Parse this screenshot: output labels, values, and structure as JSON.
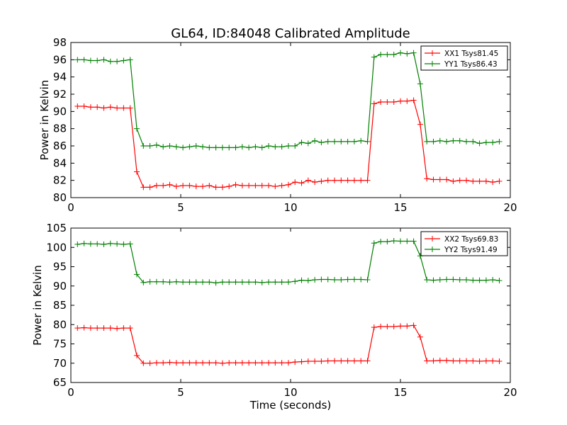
{
  "title": "GL64, ID:84048 Calibrated Amplitude",
  "chart_data": [
    {
      "type": "line",
      "xlabel": "",
      "ylabel": "Power in Kelvin",
      "xlim": [
        0,
        20
      ],
      "ylim": [
        80,
        98
      ],
      "xticks": [
        0,
        5,
        10,
        15,
        20
      ],
      "yticks": [
        80,
        82,
        84,
        86,
        88,
        90,
        92,
        94,
        96,
        98
      ],
      "grid": false,
      "legend_position": "top-right",
      "x": [
        0.3,
        0.6,
        0.9,
        1.2,
        1.5,
        1.8,
        2.1,
        2.4,
        2.7,
        3.0,
        3.3,
        3.6,
        3.9,
        4.2,
        4.5,
        4.8,
        5.1,
        5.4,
        5.7,
        6.0,
        6.3,
        6.6,
        6.9,
        7.2,
        7.5,
        7.8,
        8.1,
        8.4,
        8.7,
        9.0,
        9.3,
        9.6,
        9.9,
        10.2,
        10.5,
        10.8,
        11.1,
        11.4,
        11.7,
        12.0,
        12.3,
        12.6,
        12.9,
        13.2,
        13.5,
        13.8,
        14.1,
        14.4,
        14.7,
        15.0,
        15.3,
        15.6,
        15.9,
        16.2,
        16.5,
        16.8,
        17.1,
        17.4,
        17.7,
        18.0,
        18.3,
        18.6,
        18.9,
        19.2,
        19.5
      ],
      "series": [
        {
          "name": "XX1 Tsys81.45",
          "color": "#ff0000",
          "values": [
            90.6,
            90.6,
            90.5,
            90.5,
            90.4,
            90.5,
            90.4,
            90.4,
            90.4,
            83.0,
            81.2,
            81.2,
            81.4,
            81.4,
            81.5,
            81.3,
            81.4,
            81.4,
            81.3,
            81.3,
            81.4,
            81.2,
            81.2,
            81.3,
            81.5,
            81.4,
            81.4,
            81.4,
            81.4,
            81.4,
            81.3,
            81.4,
            81.5,
            81.8,
            81.7,
            82.0,
            81.8,
            81.9,
            82.0,
            82.0,
            82.0,
            82.0,
            82.0,
            82.0,
            82.0,
            90.9,
            91.1,
            91.1,
            91.1,
            91.2,
            91.2,
            91.3,
            88.5,
            82.2,
            82.1,
            82.1,
            82.1,
            81.9,
            82.0,
            82.0,
            81.9,
            81.9,
            81.9,
            81.8,
            81.9
          ]
        },
        {
          "name": "YY1 Tsys86.43",
          "color": "#008000",
          "values": [
            96.0,
            96.0,
            95.9,
            95.9,
            96.0,
            95.8,
            95.8,
            95.9,
            96.0,
            88.0,
            86.0,
            86.0,
            86.1,
            85.9,
            86.0,
            85.9,
            85.8,
            85.9,
            86.0,
            85.9,
            85.8,
            85.8,
            85.8,
            85.8,
            85.8,
            85.9,
            85.8,
            85.9,
            85.8,
            86.0,
            85.9,
            85.9,
            86.0,
            86.0,
            86.4,
            86.3,
            86.6,
            86.4,
            86.5,
            86.5,
            86.5,
            86.5,
            86.5,
            86.6,
            86.5,
            96.3,
            96.6,
            96.6,
            96.6,
            96.8,
            96.7,
            96.8,
            93.2,
            86.5,
            86.5,
            86.6,
            86.5,
            86.6,
            86.6,
            86.5,
            86.5,
            86.3,
            86.4,
            86.4,
            86.5
          ]
        }
      ]
    },
    {
      "type": "line",
      "xlabel": "Time (seconds)",
      "ylabel": "Power in Kelvin",
      "xlim": [
        0,
        20
      ],
      "ylim": [
        65,
        105
      ],
      "xticks": [
        0,
        5,
        10,
        15,
        20
      ],
      "yticks": [
        65,
        70,
        75,
        80,
        85,
        90,
        95,
        100,
        105
      ],
      "grid": false,
      "legend_position": "top-right",
      "x": [
        0.3,
        0.6,
        0.9,
        1.2,
        1.5,
        1.8,
        2.1,
        2.4,
        2.7,
        3.0,
        3.3,
        3.6,
        3.9,
        4.2,
        4.5,
        4.8,
        5.1,
        5.4,
        5.7,
        6.0,
        6.3,
        6.6,
        6.9,
        7.2,
        7.5,
        7.8,
        8.1,
        8.4,
        8.7,
        9.0,
        9.3,
        9.6,
        9.9,
        10.2,
        10.5,
        10.8,
        11.1,
        11.4,
        11.7,
        12.0,
        12.3,
        12.6,
        12.9,
        13.2,
        13.5,
        13.8,
        14.1,
        14.4,
        14.7,
        15.0,
        15.3,
        15.6,
        15.9,
        16.2,
        16.5,
        16.8,
        17.1,
        17.4,
        17.7,
        18.0,
        18.3,
        18.6,
        18.9,
        19.2,
        19.5
      ],
      "series": [
        {
          "name": "XX2 Tsys69.83",
          "color": "#ff0000",
          "values": [
            79.1,
            79.2,
            79.1,
            79.1,
            79.1,
            79.1,
            79.0,
            79.1,
            79.1,
            72.0,
            70.0,
            70.0,
            70.1,
            70.1,
            70.2,
            70.1,
            70.1,
            70.1,
            70.1,
            70.1,
            70.1,
            70.1,
            70.0,
            70.1,
            70.1,
            70.1,
            70.1,
            70.1,
            70.1,
            70.1,
            70.1,
            70.1,
            70.1,
            70.3,
            70.4,
            70.5,
            70.5,
            70.5,
            70.6,
            70.6,
            70.6,
            70.6,
            70.6,
            70.6,
            70.6,
            79.3,
            79.5,
            79.5,
            79.5,
            79.6,
            79.6,
            79.8,
            76.8,
            70.6,
            70.6,
            70.7,
            70.7,
            70.6,
            70.6,
            70.6,
            70.6,
            70.5,
            70.6,
            70.6,
            70.5
          ]
        },
        {
          "name": "YY2 Tsys91.49",
          "color": "#008000",
          "values": [
            100.8,
            101.0,
            100.9,
            100.9,
            100.8,
            101.0,
            100.9,
            100.8,
            100.9,
            93.0,
            90.9,
            91.1,
            91.1,
            91.1,
            91.0,
            91.1,
            91.0,
            91.0,
            91.0,
            91.0,
            91.0,
            90.8,
            91.0,
            91.0,
            91.0,
            91.0,
            91.0,
            91.0,
            90.9,
            91.0,
            91.0,
            91.0,
            91.0,
            91.2,
            91.5,
            91.4,
            91.6,
            91.7,
            91.7,
            91.6,
            91.6,
            91.7,
            91.7,
            91.7,
            91.6,
            101.1,
            101.5,
            101.5,
            101.7,
            101.6,
            101.6,
            101.6,
            97.8,
            91.6,
            91.5,
            91.6,
            91.7,
            91.7,
            91.6,
            91.6,
            91.5,
            91.5,
            91.5,
            91.6,
            91.4
          ]
        }
      ]
    }
  ]
}
